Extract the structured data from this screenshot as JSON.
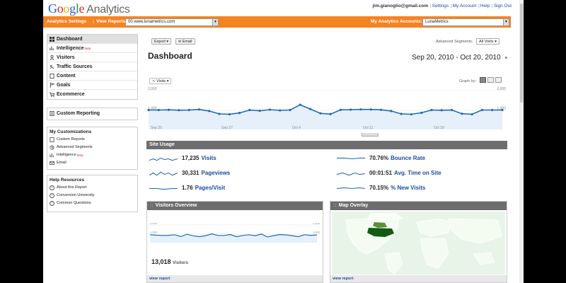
{
  "header": {
    "logo_google": "Google",
    "logo_analytics": "Analytics",
    "user_email": "jim.gianoglio@gmail.com",
    "links": [
      "Settings",
      "My Account",
      "Help",
      "Sign Out"
    ]
  },
  "navbar": {
    "settings_link": "Analytics Settings",
    "view_reports_label": "View Reports:",
    "view_reports_value": "00 www.lunametrics.com",
    "accounts_label": "My Analytics Accounts:",
    "accounts_value": "LunaMetrics"
  },
  "sidebar": {
    "items": [
      {
        "label": "Dashboard",
        "icon": "dashboard-icon",
        "active": true
      },
      {
        "label": "Intelligence",
        "icon": "intelligence-icon",
        "beta": "beta"
      },
      {
        "label": "Visitors",
        "icon": "visitors-icon"
      },
      {
        "label": "Traffic Sources",
        "icon": "traffic-icon"
      },
      {
        "label": "Content",
        "icon": "content-icon"
      },
      {
        "label": "Goals",
        "icon": "goals-icon"
      },
      {
        "label": "Ecommerce",
        "icon": "ecommerce-icon"
      }
    ],
    "custom_reporting": "Custom Reporting",
    "my_customizations_title": "My Customizations",
    "my_customizations": [
      {
        "label": "Custom Reports",
        "icon": "custom-reports-icon"
      },
      {
        "label": "Advanced Segments",
        "icon": "segments-icon"
      },
      {
        "label": "Intelligence",
        "icon": "intelligence-icon",
        "beta": "beta"
      },
      {
        "label": "Email",
        "icon": "email-icon"
      }
    ],
    "help_title": "Help Resources",
    "help_items": [
      "About this Report",
      "Conversion University",
      "Common Questions"
    ]
  },
  "toolbar": {
    "export": "Export",
    "email": "Email",
    "advanced_segments_label": "Advanced Segments:",
    "segment_value": "All Visits"
  },
  "dashboard": {
    "title": "Dashboard",
    "date_range": "Sep 20, 2010 - Oct 20, 2010",
    "graph_by": "Graph by:",
    "metric_selector": "Visits"
  },
  "chart_data": {
    "type": "line",
    "series": [
      {
        "name": "Visits",
        "values": [
          1000,
          1000,
          1010,
          990,
          1000,
          1030,
          950,
          800,
          780,
          850,
          1000,
          960,
          1020,
          980,
          1000,
          1270,
          1050,
          830,
          790,
          1010,
          1020,
          1030,
          1030,
          1010,
          950,
          800,
          780,
          860,
          1000,
          990,
          1000,
          810,
          780,
          1000,
          1000,
          1000
        ]
      }
    ],
    "x_tick_labels": [
      "Sep 20",
      "Sep 27",
      "Oct 4",
      "Oct 11",
      "Oct 18"
    ],
    "y_tick_labels": [
      "2,000",
      "1,000"
    ],
    "ylim": [
      0,
      2000
    ]
  },
  "site_usage": {
    "title": "Site Usage",
    "metrics": [
      {
        "value": "17,235",
        "label": "Visits"
      },
      {
        "value": "30,331",
        "label": "Pageviews"
      },
      {
        "value": "1.76",
        "label": "Pages/Visit"
      },
      {
        "value": "70.76%",
        "label": "Bounce Rate"
      },
      {
        "value": "00:01:51",
        "label": "Avg. Time on Site"
      },
      {
        "value": "70.15%",
        "label": "% New Visits"
      }
    ]
  },
  "visitors_overview": {
    "title": "Visitors Overview",
    "total": "13,018",
    "total_label": "Visitors",
    "view_report": "view report",
    "chart_data": {
      "type": "line",
      "series": [
        {
          "name": "Visitors",
          "values": [
            900,
            850,
            820,
            830,
            900,
            700,
            950,
            780,
            680,
            800,
            1000,
            820,
            820,
            920,
            680,
            820,
            900,
            790,
            980,
            650,
            800,
            920,
            880,
            790,
            680,
            900,
            830,
            870
          ]
        }
      ],
      "y_tick_labels": [
        "2,000",
        "1,000"
      ],
      "ylim": [
        0,
        2000
      ]
    }
  },
  "map_overlay": {
    "title": "Map Overlay",
    "view_report": "view report"
  }
}
